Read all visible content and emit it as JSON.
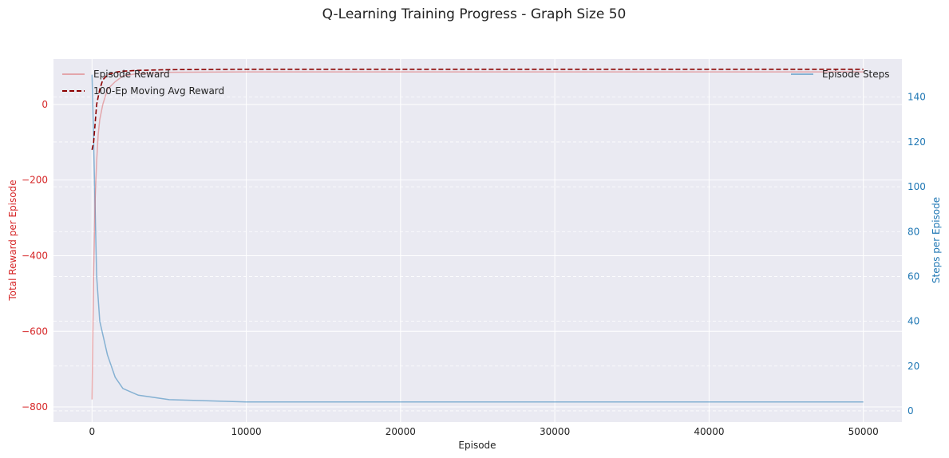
{
  "chart_data": {
    "type": "line",
    "title": "Q-Learning Training Progress - Graph Size 50",
    "xlabel": "Episode",
    "ylabel_left": "Total Reward per Episode",
    "ylabel_right": "Steps per Episode",
    "xlim": [
      -2500,
      52500
    ],
    "ylim_left": [
      -840,
      120
    ],
    "ylim_right": [
      -5,
      157
    ],
    "x_ticks": [
      0,
      10000,
      20000,
      30000,
      40000,
      50000
    ],
    "y_ticks_left": [
      -800,
      -600,
      -400,
      -200,
      0
    ],
    "y_ticks_right": [
      0,
      20,
      40,
      60,
      80,
      100,
      120,
      140
    ],
    "grid": true,
    "legend_left_placement": "top-left",
    "legend_right_placement": "top-right",
    "colors": {
      "reward": "#d62728",
      "moving_avg": "#8b0000",
      "steps": "#1f77b4",
      "left_axis": "#d62728",
      "right_axis": "#1f77b4",
      "plot_bg": "#eaeaf2"
    },
    "series": [
      {
        "name": "Episode Reward",
        "axis": "left",
        "style": "line, alpha 0.3",
        "x": [
          0,
          100,
          200,
          300,
          400,
          500,
          700,
          1000,
          1500,
          2000,
          3000,
          5000,
          10000,
          20000,
          30000,
          40000,
          50000
        ],
        "values": [
          -780,
          -450,
          -250,
          -150,
          -80,
          -40,
          0,
          40,
          60,
          75,
          82,
          85,
          86,
          86,
          86,
          86,
          86
        ]
      },
      {
        "name": "100-Ep Moving Avg Reward",
        "axis": "left",
        "style": "dashed",
        "x": [
          0,
          100,
          200,
          300,
          500,
          700,
          1000,
          1500,
          2000,
          3000,
          5000,
          10000,
          20000,
          30000,
          40000,
          50000
        ],
        "values": [
          -120,
          -100,
          -50,
          0,
          40,
          65,
          78,
          85,
          88,
          90,
          92,
          93,
          93,
          93,
          93,
          93
        ]
      },
      {
        "name": "Episode Steps",
        "axis": "right",
        "style": "line, alpha 0.5",
        "x": [
          0,
          100,
          200,
          300,
          500,
          1000,
          1500,
          2000,
          3000,
          5000,
          10000,
          20000,
          30000,
          40000,
          50000
        ],
        "values": [
          150,
          120,
          90,
          60,
          40,
          25,
          15,
          10,
          7,
          5,
          4,
          4,
          4,
          4,
          4
        ]
      }
    ]
  }
}
